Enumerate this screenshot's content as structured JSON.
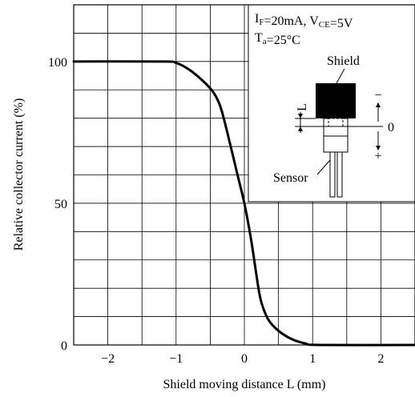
{
  "chart_data": {
    "type": "line",
    "title": "",
    "xlabel": "Shield  moving distance L (mm)",
    "ylabel": "Relative collector current (%)",
    "xlim": [
      -2.5,
      2.5
    ],
    "ylim": [
      0,
      120
    ],
    "x_ticks": [
      {
        "value": -2,
        "label": "−2"
      },
      {
        "value": -1,
        "label": "−1"
      },
      {
        "value": 0,
        "label": "0"
      },
      {
        "value": 1,
        "label": "1"
      },
      {
        "value": 2,
        "label": "2"
      }
    ],
    "y_ticks": [
      {
        "value": 0,
        "label": "0"
      },
      {
        "value": 50,
        "label": "50"
      },
      {
        "value": 100,
        "label": "100"
      }
    ],
    "grid": true,
    "series": [
      {
        "color": "#000000",
        "x": [
          -2.5,
          -1.2,
          -1.0,
          -0.8,
          -0.6,
          -0.45,
          -0.35,
          -0.25,
          -0.1,
          0.0,
          0.1,
          0.2,
          0.25,
          0.35,
          0.5,
          0.7,
          0.9,
          1.1,
          2.5
        ],
        "y": [
          100,
          100,
          99.5,
          97,
          93,
          89,
          84,
          75,
          60,
          50,
          37,
          21,
          15,
          9,
          5,
          2,
          0.5,
          0,
          0
        ]
      }
    ],
    "conditions": {
      "line1_parts": [
        {
          "text": "I",
          "sub": "F"
        },
        {
          "text": "=20mA, V",
          "sub": "CE"
        },
        {
          "text": "=5V",
          "sub": ""
        }
      ],
      "line2_parts": [
        {
          "text": "T",
          "sub": "a"
        },
        {
          "text": "=25°C",
          "sub": ""
        }
      ]
    },
    "diagram_labels": {
      "shield": "Shield",
      "sensor": "Sensor",
      "distance": "L",
      "minus": "−",
      "zero": "0",
      "plus": "+"
    }
  }
}
